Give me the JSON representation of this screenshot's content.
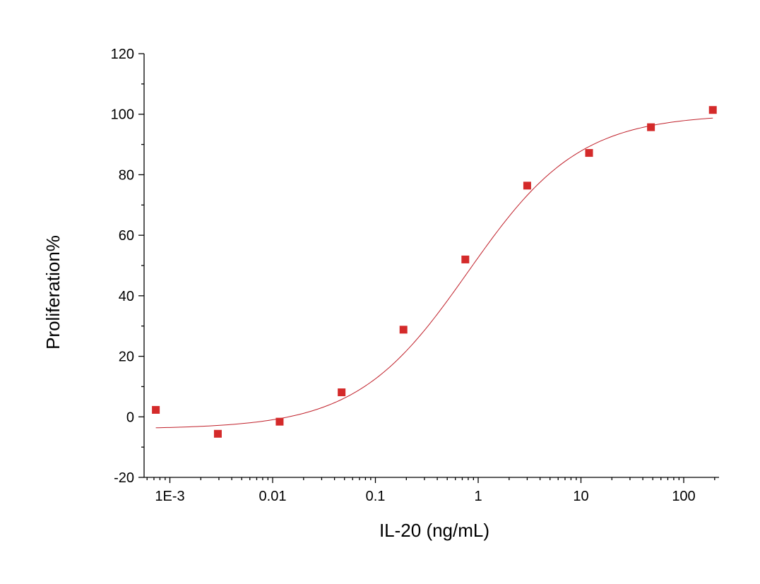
{
  "chart_data": {
    "type": "scatter",
    "xlabel": "IL-20 (ng/mL)",
    "ylabel": "Proliferation%",
    "x_scale": "log",
    "xlim": [
      0.0005,
      250
    ],
    "ylim": [
      -20,
      120
    ],
    "xticks": [
      0.001,
      0.01,
      0.1,
      1,
      10,
      100
    ],
    "xtick_labels": [
      "1E-3",
      "0.01",
      "0.1",
      "1",
      "10",
      "100"
    ],
    "yticks": [
      -20,
      0,
      20,
      40,
      60,
      80,
      100,
      120
    ],
    "ytick_labels": [
      "-20",
      "0",
      "20",
      "40",
      "60",
      "80",
      "100",
      "120"
    ],
    "grid": false,
    "series": [
      {
        "points": [
          {
            "x": 0.00073,
            "y": 2.3
          },
          {
            "x": 0.00293,
            "y": -5.6
          },
          {
            "x": 0.0117,
            "y": -1.6
          },
          {
            "x": 0.0469,
            "y": 8.1
          },
          {
            "x": 0.1875,
            "y": 28.8
          },
          {
            "x": 0.75,
            "y": 52.0
          },
          {
            "x": 3.0,
            "y": 76.4
          },
          {
            "x": 12.0,
            "y": 87.2
          },
          {
            "x": 48.0,
            "y": 95.7
          },
          {
            "x": 192.0,
            "y": 101.4
          }
        ],
        "color": "#d42a2a",
        "marker": "square"
      }
    ],
    "fit": {
      "model": "4PL",
      "bottom": -4.0,
      "top": 100.0,
      "ec50": 0.8,
      "hill": 0.8,
      "x_range": [
        0.00073,
        192.0
      ],
      "color": "#c0202a"
    }
  }
}
